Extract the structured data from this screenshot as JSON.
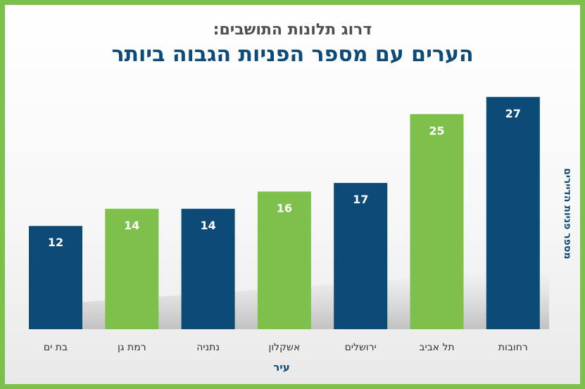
{
  "header": {
    "subtitle": "דרוג תלונות התושבים:",
    "title": "הערים עם מספר הפניות הגבוה ביותר"
  },
  "colors": {
    "navy": "#0c4a78",
    "green": "#7dc04b",
    "frame": "#7dc04b"
  },
  "chart_data": {
    "type": "bar",
    "title": "הערים עם מספר הפניות הגבוה ביותר",
    "subtitle": "דרוג תלונות התושבים:",
    "xlabel": "עיר",
    "ylabel": "מספר פניות הדיירים",
    "categories": [
      "בת ים",
      "רמת גן",
      "נתניה",
      "אשקלון",
      "ירושלים",
      "תל אביב",
      "רחובות"
    ],
    "values": [
      12,
      14,
      14,
      16,
      17,
      25,
      27
    ],
    "bar_colors": [
      "#0c4a78",
      "#7dc04b",
      "#0c4a78",
      "#7dc04b",
      "#0c4a78",
      "#7dc04b",
      "#0c4a78"
    ],
    "ylim": [
      0,
      27
    ],
    "grid": false,
    "data_labels": true
  }
}
